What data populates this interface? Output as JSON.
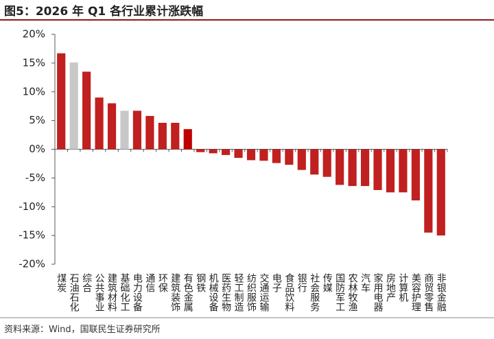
{
  "chart_data": {
    "type": "bar",
    "title": "图5：2026 年 Q1 各行业累计涨跌幅",
    "source": "资料来源：Wind，国联民生证券研究所",
    "categories": [
      "煤炭",
      "石油石化",
      "综合",
      "公共事业",
      "建筑材料",
      "基础化工",
      "电力设备",
      "通信",
      "环保",
      "建筑装饰",
      "有色金属",
      "钢铁",
      "机械设备",
      "医药生物",
      "轻工制造",
      "纺织服饰",
      "交通运输",
      "电子",
      "食品饮料",
      "银行",
      "社会服务",
      "传媒",
      "国防军工",
      "农林牧渔",
      "汽车",
      "家用电器",
      "房地产",
      "计算机",
      "美容护理",
      "商贸零售",
      "非银金融"
    ],
    "values": [
      16.7,
      15.1,
      13.5,
      9.0,
      8.0,
      6.7,
      6.7,
      5.8,
      4.6,
      4.6,
      3.5,
      -0.5,
      -0.7,
      -1.0,
      -1.5,
      -1.9,
      -2.0,
      -2.4,
      -2.7,
      -3.6,
      -4.4,
      -4.8,
      -6.2,
      -6.4,
      -6.4,
      -7.1,
      -7.5,
      -7.5,
      -8.9,
      -14.5,
      -15.0
    ],
    "colors": [
      "#c0201f",
      "#c8c8c8",
      "#c0201f",
      "#c0201f",
      "#c0201f",
      "#c8c8c8",
      "#c0201f",
      "#c0201f",
      "#c0201f",
      "#c0201f",
      "#c00000",
      "#c0201f",
      "#c0201f",
      "#c0201f",
      "#c0201f",
      "#c0201f",
      "#c0201f",
      "#c0201f",
      "#c0201f",
      "#c0201f",
      "#c0201f",
      "#c0201f",
      "#c0201f",
      "#c0201f",
      "#c0201f",
      "#c0201f",
      "#c0201f",
      "#c0201f",
      "#c0201f",
      "#c0201f",
      "#c0201f"
    ],
    "ylim": [
      -20,
      20
    ],
    "yticks": [
      {
        "value": -20,
        "label": "-20%"
      },
      {
        "value": -15,
        "label": "-15%"
      },
      {
        "value": -10,
        "label": "-10%"
      },
      {
        "value": -5,
        "label": "-5%"
      },
      {
        "value": 0,
        "label": "0%"
      },
      {
        "value": 5,
        "label": "5%"
      },
      {
        "value": 10,
        "label": "10%"
      },
      {
        "value": 15,
        "label": "15%"
      },
      {
        "value": 20,
        "label": "20%"
      }
    ],
    "grid": false
  }
}
